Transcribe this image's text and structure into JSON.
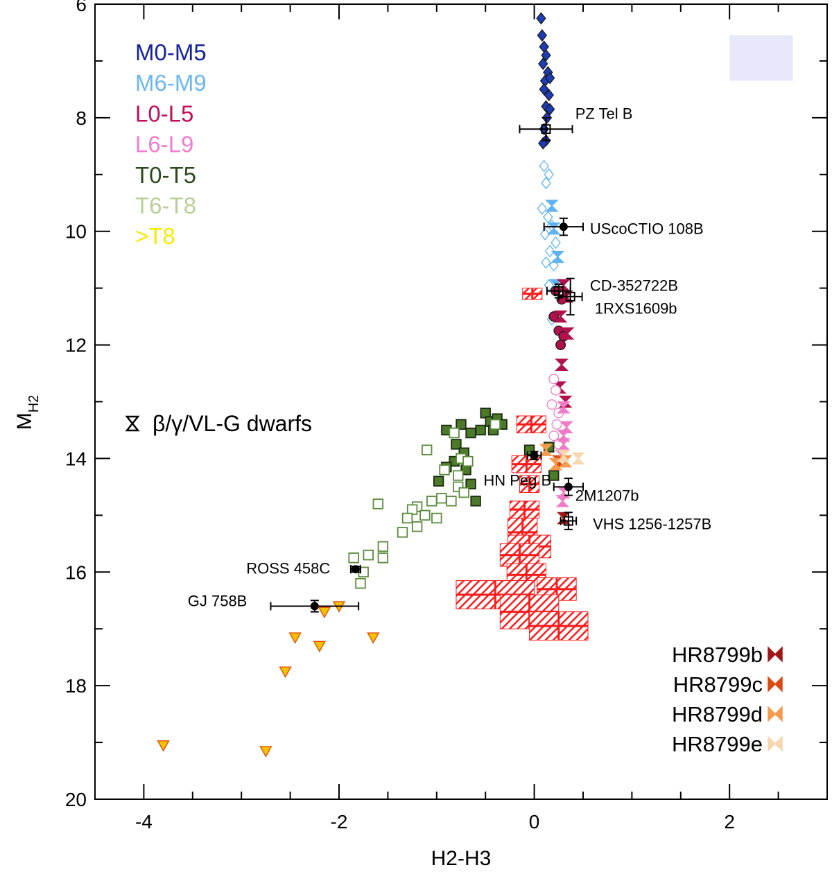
{
  "chart_data": {
    "type": "scatter",
    "title": "",
    "xlabel": "H2-H3",
    "ylabel_main": "M",
    "ylabel_sub": "H2",
    "xlim": [
      -4.5,
      3.0
    ],
    "ylim": [
      20,
      6
    ],
    "xticks": [
      -4,
      -2,
      0,
      2
    ],
    "xtick_labels": [
      "-4",
      "-2",
      "0",
      "2"
    ],
    "yticks": [
      6,
      8,
      10,
      12,
      14,
      16,
      18,
      20
    ],
    "ytick_labels": [
      "6",
      "8",
      "10",
      "12",
      "14",
      "16",
      "18",
      "20"
    ],
    "colors": {
      "M0-M5": "#1c3db4",
      "M6-M9": "#5fb3ee",
      "L0-L5": "#b0124e",
      "L6-L9": "#f07cc8",
      "T0-T5": "#2f4f1e",
      "T6-T8": "#b5cc94",
      "gtT8": "#f5e400",
      "hr_model": "#ff1a1a",
      "HR8799b": "#a31616",
      "HR8799c": "#dc4a14",
      "HR8799d": "#f59a4c",
      "HR8799e": "#f8d7b0"
    },
    "legend_spectral": [
      {
        "label": "M0-M5",
        "color": "#16229c"
      },
      {
        "label": "M6-M9",
        "color": "#6cb7ef"
      },
      {
        "label": "L0-L5",
        "color": "#c0105a"
      },
      {
        "label": "L6-L9",
        "color": "#f27cd0"
      },
      {
        "label": "T0-T5",
        "color": "#2c4a1c"
      },
      {
        "label": "T6-T8",
        "color": "#b9cf97"
      },
      {
        "label": ">T8",
        "color": "#f7ea00"
      }
    ],
    "legend_gravity": "β/γ/VL-G dwarfs",
    "legend_planets": [
      {
        "label": "HR8799b",
        "color": "#a31616"
      },
      {
        "label": "HR8799c",
        "color": "#dc4a14"
      },
      {
        "label": "HR8799d",
        "color": "#f59a4c"
      },
      {
        "label": "HR8799e",
        "color": "#f8d7b0"
      }
    ],
    "legend_box": {
      "x_range": [
        2.0,
        2.65
      ],
      "y_range": [
        6.55,
        7.35
      ],
      "color": "#e8e8fb"
    },
    "series": [
      {
        "name": "M0-M5",
        "marker": "diamond",
        "filled": true,
        "color": "#1c3db4",
        "points": [
          [
            0.07,
            6.25
          ],
          [
            0.08,
            6.55
          ],
          [
            0.1,
            6.75
          ],
          [
            0.12,
            6.9
          ],
          [
            0.09,
            7.05
          ],
          [
            0.14,
            7.2
          ],
          [
            0.11,
            7.35
          ],
          [
            0.16,
            7.3
          ],
          [
            0.1,
            7.5
          ],
          [
            0.15,
            7.6
          ],
          [
            0.12,
            7.8
          ],
          [
            0.16,
            7.85
          ],
          [
            0.13,
            8.0
          ],
          [
            0.1,
            8.2
          ],
          [
            0.12,
            8.4
          ],
          [
            0.09,
            8.45
          ]
        ]
      },
      {
        "name": "M6-M9",
        "marker": "diamond",
        "filled": false,
        "color": "#5fb3ee",
        "points": [
          [
            0.1,
            8.85
          ],
          [
            0.15,
            9.0
          ],
          [
            0.12,
            9.15
          ],
          [
            0.08,
            9.6
          ],
          [
            0.14,
            9.75
          ],
          [
            0.18,
            9.9
          ],
          [
            0.11,
            10.05
          ],
          [
            0.22,
            10.2
          ],
          [
            0.16,
            10.35
          ],
          [
            0.12,
            10.55
          ],
          [
            0.2,
            10.6
          ],
          [
            0.15,
            10.95
          ],
          [
            0.18,
            11.55
          ]
        ]
      },
      {
        "name": "M6-M9-young",
        "marker": "bowtie",
        "color": "#5fb3ee",
        "points": [
          [
            0.18,
            9.55
          ],
          [
            0.2,
            9.95
          ],
          [
            0.24,
            10.45
          ],
          [
            0.22,
            10.95
          ]
        ]
      },
      {
        "name": "L0-L5",
        "marker": "circle",
        "filled": true,
        "color": "#b0124e",
        "points": [
          [
            0.22,
            11.05
          ],
          [
            0.28,
            11.2
          ],
          [
            0.2,
            11.5
          ],
          [
            0.25,
            11.75
          ],
          [
            0.3,
            11.85
          ],
          [
            0.27,
            12.0
          ]
        ]
      },
      {
        "name": "L0-L5-young",
        "marker": "bowtie",
        "color": "#b0124e",
        "points": [
          [
            0.3,
            10.95
          ],
          [
            0.33,
            11.15
          ],
          [
            0.27,
            11.5
          ],
          [
            0.34,
            11.8
          ],
          [
            0.28,
            12.35
          ],
          [
            0.26,
            12.75
          ],
          [
            0.32,
            13.0
          ]
        ]
      },
      {
        "name": "L6-L9",
        "marker": "circle",
        "filled": false,
        "color": "#f07cc8",
        "points": [
          [
            0.2,
            12.6
          ],
          [
            0.22,
            12.8
          ],
          [
            0.18,
            13.05
          ],
          [
            0.25,
            13.2
          ],
          [
            0.23,
            13.4
          ],
          [
            0.2,
            13.6
          ],
          [
            0.25,
            13.75
          ]
        ]
      },
      {
        "name": "L6-L9-young",
        "marker": "bowtie",
        "color": "#f07cc8",
        "points": [
          [
            0.3,
            13.1
          ],
          [
            0.33,
            13.45
          ],
          [
            0.3,
            13.6
          ],
          [
            0.3,
            13.75
          ],
          [
            0.28,
            13.95
          ],
          [
            0.3,
            14.6
          ],
          [
            0.29,
            14.75
          ]
        ]
      },
      {
        "name": "T0-T5",
        "marker": "square",
        "filled": true,
        "color": "#4d7a2a",
        "points": [
          [
            -0.5,
            13.2
          ],
          [
            -0.45,
            13.35
          ],
          [
            -0.38,
            13.3
          ],
          [
            -0.33,
            13.4
          ],
          [
            -0.42,
            13.5
          ],
          [
            -0.55,
            13.5
          ],
          [
            -0.65,
            13.55
          ],
          [
            -0.75,
            13.4
          ],
          [
            -0.9,
            13.5
          ],
          [
            -0.8,
            13.75
          ],
          [
            -0.72,
            13.9
          ],
          [
            -0.82,
            14.05
          ],
          [
            -0.9,
            14.15
          ],
          [
            -0.7,
            14.2
          ],
          [
            -0.98,
            14.4
          ],
          [
            -0.65,
            14.45
          ],
          [
            -0.6,
            14.75
          ],
          [
            -0.05,
            13.85
          ],
          [
            0.15,
            13.8
          ],
          [
            0.2,
            14.3
          ]
        ]
      },
      {
        "name": "T6-T8",
        "marker": "square",
        "filled": false,
        "color": "#5a8a3a",
        "points": [
          [
            -0.4,
            13.4
          ],
          [
            -0.82,
            13.55
          ],
          [
            -1.1,
            13.85
          ],
          [
            -0.92,
            14.2
          ],
          [
            -0.75,
            14.0
          ],
          [
            -0.68,
            14.05
          ],
          [
            -0.78,
            14.3
          ],
          [
            -0.78,
            14.5
          ],
          [
            -0.72,
            14.6
          ],
          [
            -0.85,
            14.75
          ],
          [
            -0.95,
            14.7
          ],
          [
            -1.05,
            14.75
          ],
          [
            -1.0,
            15.05
          ],
          [
            -1.2,
            14.85
          ],
          [
            -1.25,
            14.9
          ],
          [
            -1.12,
            15.0
          ],
          [
            -1.3,
            15.05
          ],
          [
            -1.6,
            14.8
          ],
          [
            -1.2,
            15.2
          ],
          [
            -1.35,
            15.3
          ],
          [
            -1.55,
            15.55
          ],
          [
            -1.7,
            15.7
          ],
          [
            -1.85,
            15.75
          ],
          [
            -1.55,
            15.75
          ],
          [
            -1.75,
            16.0
          ],
          [
            -1.78,
            16.2
          ]
        ]
      },
      {
        "name": ">T8",
        "marker": "triangle-down",
        "filled": true,
        "color": "#f5c000",
        "points": [
          [
            -2.0,
            16.6
          ],
          [
            -2.15,
            16.7
          ],
          [
            -2.45,
            17.15
          ],
          [
            -2.2,
            17.3
          ],
          [
            -1.65,
            17.15
          ],
          [
            -2.55,
            17.75
          ],
          [
            -3.8,
            19.05
          ],
          [
            -2.75,
            19.15
          ]
        ]
      },
      {
        "name": "HR8799b",
        "marker": "bowtie",
        "color": "#a31616",
        "points": [
          [
            0.3,
            15.05
          ]
        ]
      },
      {
        "name": "HR8799c",
        "marker": "bowtie",
        "color": "#dc4a14",
        "points": [
          [
            0.25,
            14.05
          ]
        ]
      },
      {
        "name": "HR8799d",
        "marker": "bowtie",
        "color": "#f59a4c",
        "points": [
          [
            0.12,
            13.85
          ],
          [
            0.22,
            14.1
          ],
          [
            0.32,
            14.05
          ]
        ]
      },
      {
        "name": "HR8799e",
        "marker": "bowtie",
        "color": "#f8d7b0",
        "points": [
          [
            0.3,
            13.95
          ],
          [
            0.45,
            14.0
          ]
        ]
      }
    ],
    "model_points": [
      {
        "x": -0.02,
        "y": 11.1,
        "dx": 0.1,
        "dy": 0.1
      },
      {
        "x": -0.03,
        "y": 13.4,
        "dx": 0.15,
        "dy": 0.15
      },
      {
        "x": -0.08,
        "y": 14.1,
        "dx": 0.15,
        "dy": 0.15
      },
      {
        "x": -0.05,
        "y": 14.45,
        "dx": 0.1,
        "dy": 0.15
      },
      {
        "x": -0.1,
        "y": 14.9,
        "dx": 0.15,
        "dy": 0.15
      },
      {
        "x": -0.12,
        "y": 15.3,
        "dx": 0.15,
        "dy": 0.25
      },
      {
        "x": -0.05,
        "y": 15.55,
        "dx": 0.22,
        "dy": 0.2
      },
      {
        "x": -0.15,
        "y": 15.7,
        "dx": 0.2,
        "dy": 0.2
      },
      {
        "x": -0.08,
        "y": 16.05,
        "dx": 0.2,
        "dy": 0.2
      },
      {
        "x": 0.23,
        "y": 16.3,
        "dx": 0.2,
        "dy": 0.2
      },
      {
        "x": -0.4,
        "y": 16.4,
        "dx": 0.4,
        "dy": 0.25
      },
      {
        "x": -0.05,
        "y": 16.7,
        "dx": 0.3,
        "dy": 0.3
      },
      {
        "x": 0.25,
        "y": 16.95,
        "dx": 0.3,
        "dy": 0.25
      }
    ],
    "objects": [
      {
        "label": "PZ Tel B",
        "x": 0.12,
        "y": 8.2,
        "xerr": 0.27,
        "yerr": 0.2,
        "marker": "open-square",
        "label_x": 0.42,
        "label_y": 7.92
      },
      {
        "label": "UScoCTIO 108B",
        "x": 0.3,
        "y": 9.92,
        "xerr": 0.2,
        "yerr": 0.15,
        "marker": "filled-circle",
        "label_x": 0.57,
        "label_y": 9.95
      },
      {
        "label": "CD-352722B",
        "x": 0.25,
        "y": 11.05,
        "xerr": 0.12,
        "yerr": 0.12,
        "marker": "open-square",
        "label_x": 0.57,
        "label_y": 10.95
      },
      {
        "label": "1RXS1609b",
        "x": 0.37,
        "y": 11.15,
        "xerr": 0.12,
        "yerr": 0.32,
        "marker": "open-square",
        "label_x": 0.62,
        "label_y": 11.35
      },
      {
        "label": "HN Peg B",
        "x": 0.0,
        "y": 13.95,
        "xerr": 0.07,
        "yerr": 0.07,
        "marker": "filled-circle",
        "label_x": -0.52,
        "label_y": 14.38
      },
      {
        "label": "2M1207b",
        "x": 0.35,
        "y": 14.5,
        "xerr": 0.15,
        "yerr": 0.15,
        "marker": "filled-circle",
        "label_x": 0.42,
        "label_y": 14.65
      },
      {
        "label": "VHS 1256-1257B",
        "x": 0.35,
        "y": 15.1,
        "xerr": 0.08,
        "yerr": 0.15,
        "marker": "open-square",
        "label_x": 0.6,
        "label_y": 15.15
      },
      {
        "label": "ROSS 458C",
        "x": -1.83,
        "y": 15.95,
        "xerr": 0.05,
        "yerr": 0.05,
        "marker": "filled-circle",
        "label_x": -2.95,
        "label_y": 15.93
      },
      {
        "label": "GJ 758B",
        "x": -2.25,
        "y": 16.6,
        "xerr": 0.45,
        "yerr": 0.1,
        "marker": "filled-circle",
        "label_x": -3.55,
        "label_y": 16.5
      }
    ]
  }
}
